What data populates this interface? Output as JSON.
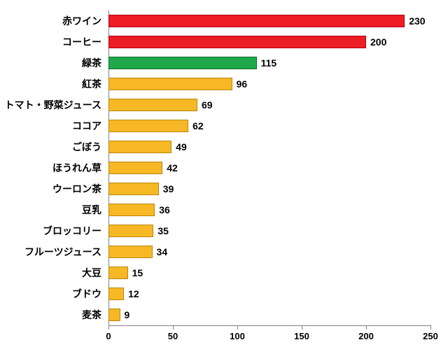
{
  "chart": {
    "type": "bar",
    "orientation": "horizontal",
    "xlim": [
      0,
      250
    ],
    "xtick_step": 50,
    "xticks": [
      0,
      50,
      100,
      150,
      200,
      250
    ],
    "background_color": "#ffffff",
    "axis_color": "#808080",
    "label_fontsize": 14,
    "value_fontsize": 14,
    "tick_fontsize": 13,
    "bar_border_color": "#b8860b",
    "bar_border_width": 1,
    "items": [
      {
        "label": "赤ワイン",
        "value": 230,
        "fill": "#ee1c25",
        "border": "#b00012"
      },
      {
        "label": "コーヒー",
        "value": 200,
        "fill": "#ee1c25",
        "border": "#b00012"
      },
      {
        "label": "緑茶",
        "value": 115,
        "fill": "#1fa94b",
        "border": "#0e6b2a"
      },
      {
        "label": "紅茶",
        "value": 96,
        "fill": "#f7b826",
        "border": "#b8860b"
      },
      {
        "label": "トマト・野菜ジュース",
        "value": 69,
        "fill": "#f7b826",
        "border": "#b8860b"
      },
      {
        "label": "ココア",
        "value": 62,
        "fill": "#f7b826",
        "border": "#b8860b"
      },
      {
        "label": "ごぼう",
        "value": 49,
        "fill": "#f7b826",
        "border": "#b8860b"
      },
      {
        "label": "ほうれん草",
        "value": 42,
        "fill": "#f7b826",
        "border": "#b8860b"
      },
      {
        "label": "ウーロン茶",
        "value": 39,
        "fill": "#f7b826",
        "border": "#b8860b"
      },
      {
        "label": "豆乳",
        "value": 36,
        "fill": "#f7b826",
        "border": "#b8860b"
      },
      {
        "label": "ブロッコリー",
        "value": 35,
        "fill": "#f7b826",
        "border": "#b8860b"
      },
      {
        "label": "フルーツジュース",
        "value": 34,
        "fill": "#f7b826",
        "border": "#b8860b"
      },
      {
        "label": "大豆",
        "value": 15,
        "fill": "#f7b826",
        "border": "#b8860b"
      },
      {
        "label": "ブドウ",
        "value": 12,
        "fill": "#f7b826",
        "border": "#b8860b"
      },
      {
        "label": "麦茶",
        "value": 9,
        "fill": "#f7b826",
        "border": "#b8860b"
      }
    ]
  }
}
